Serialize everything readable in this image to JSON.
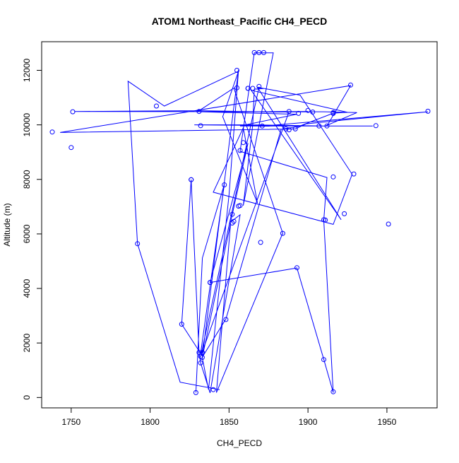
{
  "chart_data": {
    "type": "scatter",
    "title": "ATOM1 Northeast_Pacific CH4_PECD",
    "xlabel": "CH4_PECD",
    "ylabel": "Altitude (m)",
    "xlim": [
      1731.3,
      1981.8
    ],
    "ylim": [
      -380,
      13050
    ],
    "xticks": [
      1750,
      1800,
      1850,
      1900,
      1950
    ],
    "yticks": [
      0,
      2000,
      4000,
      6000,
      8000,
      10000,
      12000
    ],
    "xtick_labels": [
      "1750",
      "1800",
      "1850",
      "1900",
      "1950"
    ],
    "ytick_labels": [
      "0",
      "2000",
      "4000",
      "6000",
      "8000",
      "10000",
      "12000"
    ],
    "grid": false,
    "colors": {
      "series": "#0000ff",
      "axis": "#000000"
    },
    "series": [
      {
        "connect": true,
        "marker": "open-circle",
        "x": [
          1829,
          1833.1,
          1847,
          1832,
          1820,
          1826,
          1831,
          1832,
          1838,
          1857,
          1851,
          1862,
          1838,
          1893,
          1910,
          1916,
          1910,
          1912,
          1857,
          1866,
          1878,
          1859,
          1865,
          1866,
          1872,
          1869,
          1832,
          1888,
          1752,
          1831,
          1882,
          1886,
          1872,
          1900,
          1870,
          1905,
          1910,
          1931,
          1911,
          1865,
          1828,
          1887,
          1870,
          1976,
          1899,
          1892,
          1743,
          1927,
          1912,
          1941,
          1857,
          1893,
          1830,
          1853,
          1884,
          1842,
          1851,
          1833,
          1837,
          1850,
          1856,
          1833,
          1848,
          1883,
          1894,
          1916,
          1925,
          1864,
          1921,
          1868,
          1895,
          1928,
          1916,
          1840,
          1859,
          1868,
          1846,
          1856,
          1809,
          1786,
          1792,
          1819,
          1844
        ],
        "y": [
          180,
          5120,
          7820,
          1620,
          2690,
          7990,
          1650,
          1270,
          170,
          6700,
          6440,
          9330,
          4220,
          4750,
          1400,
          180,
          6500,
          8070,
          9030,
          12640,
          12640,
          7040,
          10010,
          11310,
          11330,
          11380,
          1510,
          10480,
          10490,
          10520,
          10470,
          10490,
          10480,
          10490,
          10470,
          10480,
          10480,
          10450,
          9960,
          10000,
          10000,
          9970,
          9950,
          10480,
          10040,
          9850,
          9720,
          11440,
          9960,
          9960,
          9960,
          10390,
          10480,
          11350,
          6030,
          180,
          6400,
          1470,
          290,
          7450,
          12020,
          1480,
          2880,
          9840,
          9940,
          10430,
          10460,
          11270,
          6520,
          11380,
          11090,
          8190,
          6350,
          7530,
          9890,
          7130,
          10300,
          11970,
          10690,
          11600,
          5640,
          560,
          290
        ]
      }
    ],
    "points": {
      "x": [
        1829,
        1833.1,
        1832,
        1820,
        1826,
        1831,
        1838,
        1857,
        1852,
        1862,
        1838,
        1893,
        1910,
        1916,
        1910,
        1916,
        1857,
        1866,
        1869,
        1872,
        1859,
        1862,
        1855,
        1865,
        1869,
        1832,
        1888,
        1751,
        1831,
        1900,
        1903,
        1916,
        1976,
        1871,
        1832,
        1894,
        1888,
        1907,
        1912,
        1943,
        1738,
        1750,
        1927,
        1916,
        1929,
        1892,
        1886,
        1884,
        1870,
        1923,
        1951,
        1911,
        1848,
        1826,
        1847,
        1804,
        1792,
        1853,
        1840,
        1833,
        1852,
        1855,
        1856
      ],
      "y": [
        180,
        1650,
        1270,
        2690,
        7990,
        1650,
        4220,
        7040,
        6720,
        11340,
        4220,
        4760,
        1390,
        210,
        6520,
        10450,
        9060,
        12650,
        12650,
        12650,
        9350,
        11340,
        11360,
        11340,
        11410,
        1510,
        10490,
        10480,
        10490,
        10530,
        10470,
        10420,
        10500,
        9960,
        9970,
        10420,
        9820,
        9960,
        9960,
        9970,
        9740,
        9170,
        11460,
        8090,
        8200,
        9850,
        9850,
        6020,
        5690,
        6740,
        6360,
        6510,
        2860,
        7990,
        7800,
        10690,
        5640,
        6460,
        290,
        1470,
        6400,
        12000,
        7020
      ]
    }
  }
}
